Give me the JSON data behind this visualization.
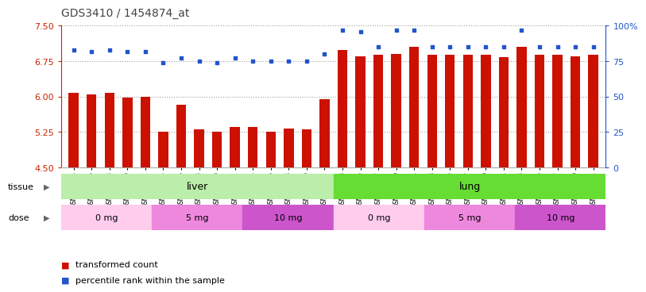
{
  "title": "GDS3410 / 1454874_at",
  "samples": [
    "GSM326944",
    "GSM326946",
    "GSM326948",
    "GSM326950",
    "GSM326952",
    "GSM326954",
    "GSM326956",
    "GSM326958",
    "GSM326960",
    "GSM326962",
    "GSM326964",
    "GSM326966",
    "GSM326968",
    "GSM326970",
    "GSM326972",
    "GSM326943",
    "GSM326945",
    "GSM326947",
    "GSM326949",
    "GSM326951",
    "GSM326953",
    "GSM326955",
    "GSM326957",
    "GSM326959",
    "GSM326961",
    "GSM326963",
    "GSM326965",
    "GSM326967",
    "GSM326969",
    "GSM326971"
  ],
  "transformed_count": [
    6.08,
    6.04,
    6.08,
    5.98,
    5.99,
    5.25,
    5.83,
    5.3,
    5.25,
    5.35,
    5.35,
    5.26,
    5.33,
    5.31,
    5.95,
    6.98,
    6.85,
    6.88,
    6.9,
    7.05,
    6.88,
    6.88,
    6.88,
    6.88,
    6.83,
    7.05,
    6.88,
    6.88,
    6.85,
    6.88
  ],
  "percentile_rank": [
    83,
    82,
    83,
    82,
    82,
    74,
    77,
    75,
    74,
    77,
    75,
    75,
    75,
    75,
    80,
    97,
    96,
    85,
    97,
    97,
    85,
    85,
    85,
    85,
    85,
    97,
    85,
    85,
    85,
    85
  ],
  "ymin": 4.5,
  "ymax": 7.5,
  "yticks": [
    4.5,
    5.25,
    6.0,
    6.75,
    7.5
  ],
  "y2min": 0,
  "y2max": 100,
  "y2ticks": [
    0,
    25,
    50,
    75,
    100
  ],
  "bar_color": "#cc1100",
  "dot_color": "#2255cc",
  "bar_bottom": 4.5,
  "tissue_groups": [
    {
      "label": "liver",
      "start": 0,
      "end": 15,
      "color": "#bbeeaa"
    },
    {
      "label": "lung",
      "start": 15,
      "end": 30,
      "color": "#66dd33"
    }
  ],
  "dose_groups": [
    {
      "label": "0 mg",
      "start": 0,
      "end": 5,
      "color": "#ffccee"
    },
    {
      "label": "5 mg",
      "start": 5,
      "end": 10,
      "color": "#ee88dd"
    },
    {
      "label": "10 mg",
      "start": 10,
      "end": 15,
      "color": "#cc55cc"
    },
    {
      "label": "0 mg",
      "start": 15,
      "end": 20,
      "color": "#ffccee"
    },
    {
      "label": "5 mg",
      "start": 20,
      "end": 25,
      "color": "#ee88dd"
    },
    {
      "label": "10 mg",
      "start": 25,
      "end": 30,
      "color": "#cc55cc"
    }
  ],
  "legend_items": [
    {
      "label": "transformed count",
      "color": "#cc1100"
    },
    {
      "label": "percentile rank within the sample",
      "color": "#2255cc"
    }
  ],
  "background_color": "#ffffff",
  "plot_bg": "#ffffff",
  "title_color": "#444444",
  "red_axis_color": "#cc2200",
  "blue_axis_color": "#2255cc",
  "grid_color": "#888888"
}
